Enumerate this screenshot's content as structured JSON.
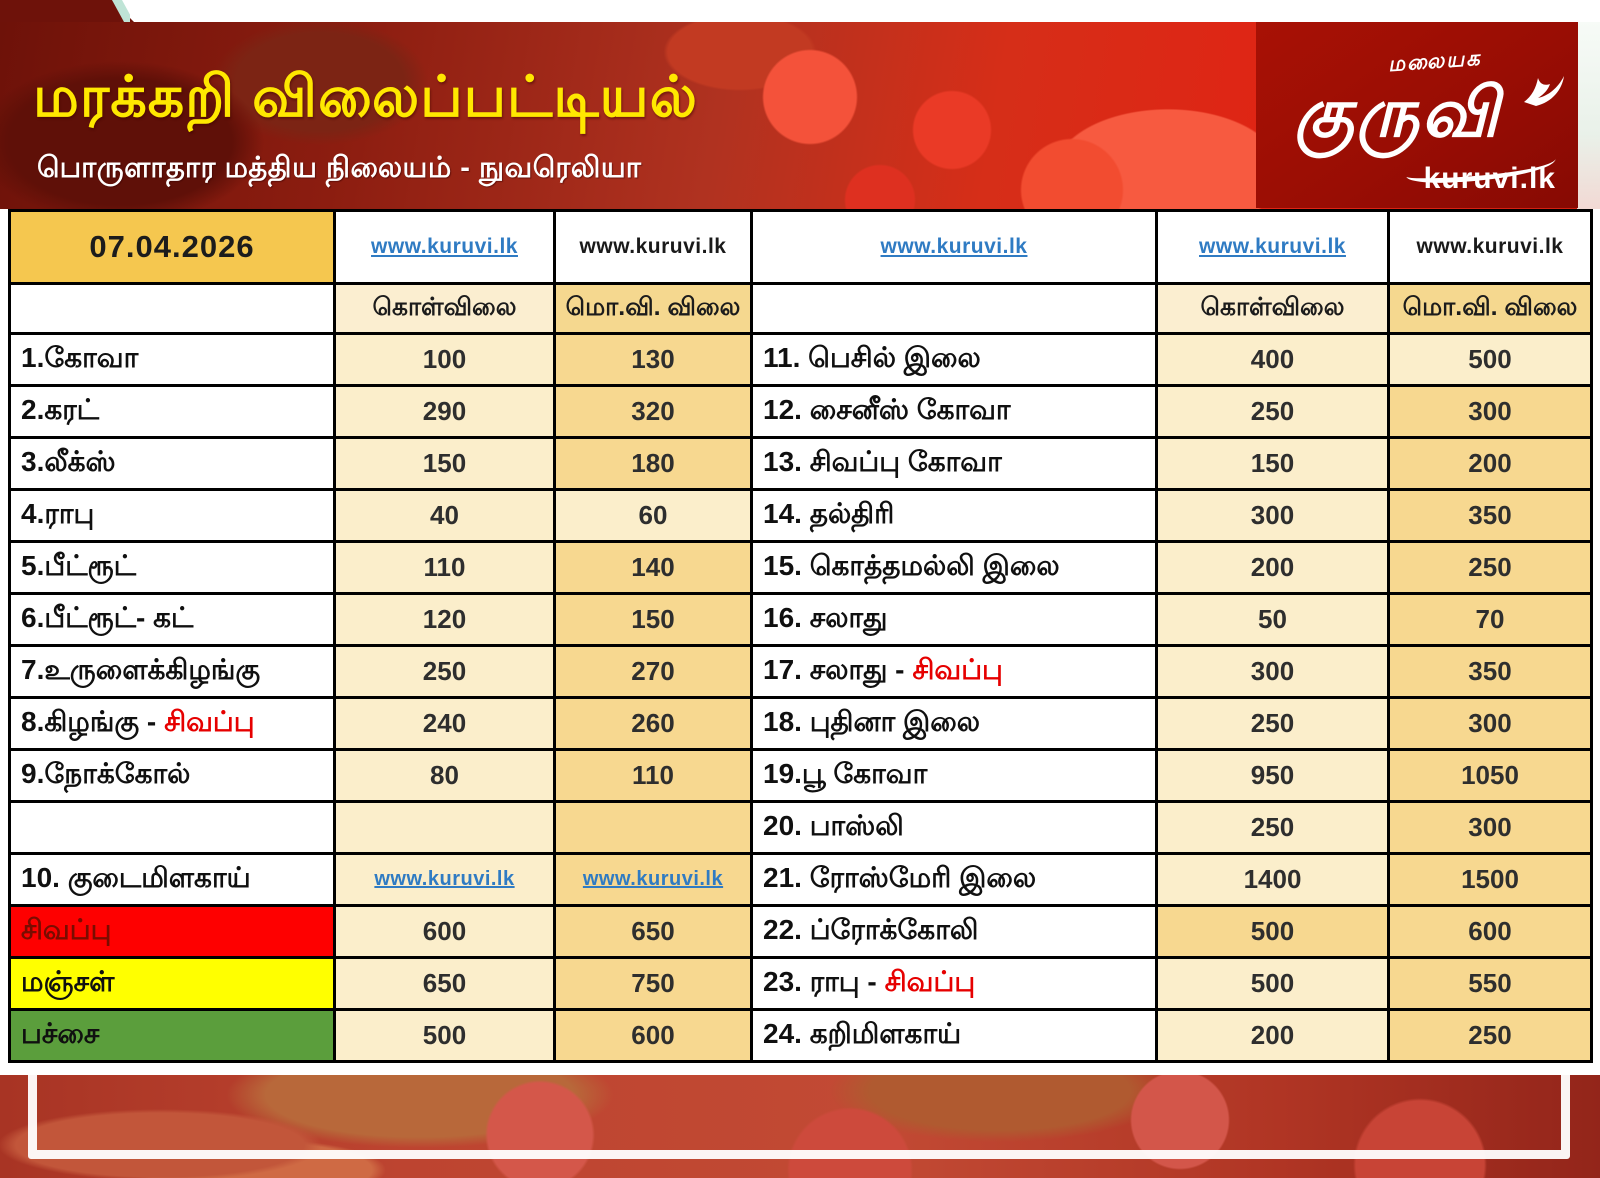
{
  "header": {
    "title": "மரக்கறி விலைப்பட்டியல்",
    "subtitle": "பொருளாதார மத்திய நிலையம் - நுவரெலியா",
    "logo": {
      "top_text": "மலையக",
      "script_text": "குருவி",
      "site_text": "kuruvi.lk"
    }
  },
  "table": {
    "date": "07.04.2026",
    "header_links": [
      {
        "text": "www.kuruvi.lk",
        "style": "blue"
      },
      {
        "text": "www.kuruvi.lk",
        "style": "black"
      },
      {
        "text": "www.kuruvi.lk",
        "style": "blue"
      },
      {
        "text": "www.kuruvi.lk",
        "style": "blue"
      },
      {
        "text": "www.kuruvi.lk",
        "style": "black"
      }
    ],
    "price_headers": {
      "buy": "கொள்விலை",
      "sell": "மொ.வி. விலை"
    },
    "left_rows": [
      {
        "name": "1.கோவா",
        "buy": "100",
        "sell": "130"
      },
      {
        "name": "2.கரட்",
        "buy": "290",
        "sell": "320"
      },
      {
        "name": "3.லீக்ஸ்",
        "buy": "150",
        "sell": "180"
      },
      {
        "name": "4.ராபு",
        "buy": "40",
        "sell": "60",
        "sell_tone": "light"
      },
      {
        "name": "5.பீட்ரூட்",
        "buy": "110",
        "sell": "140"
      },
      {
        "name": "6.பீட்ரூட்- கட்",
        "buy": "120",
        "sell": "150"
      },
      {
        "name": "7.உருளைக்கிழங்கு",
        "buy": "250",
        "sell": "270"
      },
      {
        "name": "8.கிழங்கு - ",
        "name_red": "சிவப்பு",
        "buy": "240",
        "sell": "260"
      },
      {
        "name": "9.நோக்கோல்",
        "buy": "80",
        "sell": "110"
      },
      {
        "name": "",
        "buy": "",
        "sell": ""
      },
      {
        "name": "10. குடைமிளகாய்",
        "buy_link": "www.kuruvi.lk",
        "sell_link": "www.kuruvi.lk"
      },
      {
        "name": "சிவப்பு",
        "name_bg": "red",
        "buy": "600",
        "sell": "650"
      },
      {
        "name": "மஞ்சள்",
        "name_bg": "yellow",
        "buy": "650",
        "sell": "750"
      },
      {
        "name": "பச்சை",
        "name_bg": "green",
        "buy": "500",
        "sell": "600"
      }
    ],
    "right_rows": [
      {
        "name": "11. பெசில் இலை",
        "buy": "400",
        "sell": "500",
        "sell_tone": "light"
      },
      {
        "name": "12. சைனீஸ் கோவா",
        "buy": "250",
        "sell": "300"
      },
      {
        "name": "13. சிவப்பு கோவா",
        "buy": "150",
        "sell": "200"
      },
      {
        "name": "14. தல்திரி",
        "buy": "300",
        "sell": "350"
      },
      {
        "name": "15. கொத்தமல்லி இலை",
        "buy": "200",
        "sell": "250"
      },
      {
        "name": "16. சலாது",
        "buy": "50",
        "sell": "70"
      },
      {
        "name": "17. சலாது - ",
        "name_red": "சிவப்பு",
        "buy": "300",
        "sell": "350"
      },
      {
        "name": "18. புதினா இலை",
        "buy": "250",
        "sell": "300"
      },
      {
        "name": "19.பூ கோவா",
        "buy": "950",
        "sell": "1050"
      },
      {
        "name": "20. பாஸ்லி",
        "buy": "250",
        "sell": "300"
      },
      {
        "name": "21. ரோஸ்மேரி இலை",
        "buy": "1400",
        "sell": "1500"
      },
      {
        "name": "22. ப்ரோக்கோலி",
        "buy": "500",
        "sell": "600",
        "buy_tone": "gold"
      },
      {
        "name": "23. ராபு - ",
        "name_red": "சிவப்பு",
        "buy": "500",
        "sell": "550"
      },
      {
        "name": "24. கறிமிளகாய்",
        "buy": "200",
        "sell": "250"
      }
    ]
  },
  "colors": {
    "title_yellow": "#ffe800",
    "band_red": "#c22a18",
    "logo_red": "#990d04",
    "date_gold": "#f5c74f",
    "cell_cream": "#fbeecb",
    "cell_gold": "#f7d890",
    "row_red": "#fe0000",
    "row_yellow": "#ffff00",
    "row_green": "#5b9e3c",
    "link_blue": "#2f7bc3"
  }
}
